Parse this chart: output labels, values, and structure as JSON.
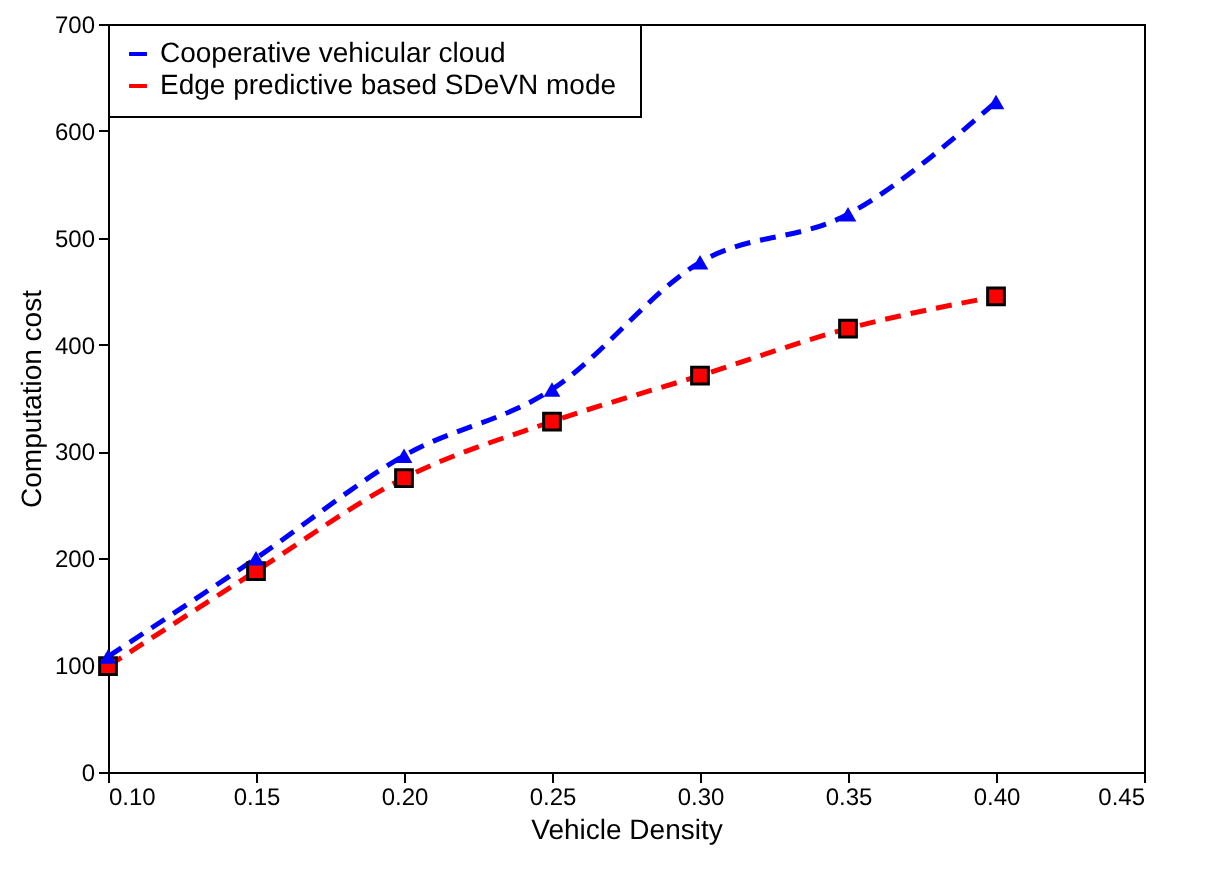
{
  "chart_data": {
    "type": "line",
    "xlabel": "Vehicle Density",
    "ylabel": "Computation cost",
    "x": [
      0.1,
      0.15,
      0.2,
      0.25,
      0.3,
      0.35,
      0.4
    ],
    "xlim": [
      0.1,
      0.45
    ],
    "xticks": [
      {
        "value": 0.1,
        "label": "0.10"
      },
      {
        "value": 0.15,
        "label": "0.15"
      },
      {
        "value": 0.2,
        "label": "0.20"
      },
      {
        "value": 0.25,
        "label": "0.25"
      },
      {
        "value": 0.3,
        "label": "0.30"
      },
      {
        "value": 0.35,
        "label": "0.35"
      },
      {
        "value": 0.4,
        "label": "0.40"
      },
      {
        "value": 0.45,
        "label": "0.45"
      }
    ],
    "ylim": [
      0,
      700
    ],
    "yticks": [
      0,
      100,
      200,
      300,
      400,
      500,
      600,
      700
    ],
    "grid": false,
    "legend": "top left",
    "line_style": "dashed",
    "series": [
      {
        "name": "Cooperative vehicular cloud",
        "color": "#0000ff",
        "marker": "triangle",
        "values": [
          108,
          200,
          296,
          358,
          477,
          522,
          627
        ]
      },
      {
        "name": "Edge  predictive based SDeVN mode",
        "color": "#ff0000",
        "marker": "square",
        "values": [
          99,
          188,
          275,
          328,
          371,
          415,
          445
        ]
      }
    ]
  }
}
